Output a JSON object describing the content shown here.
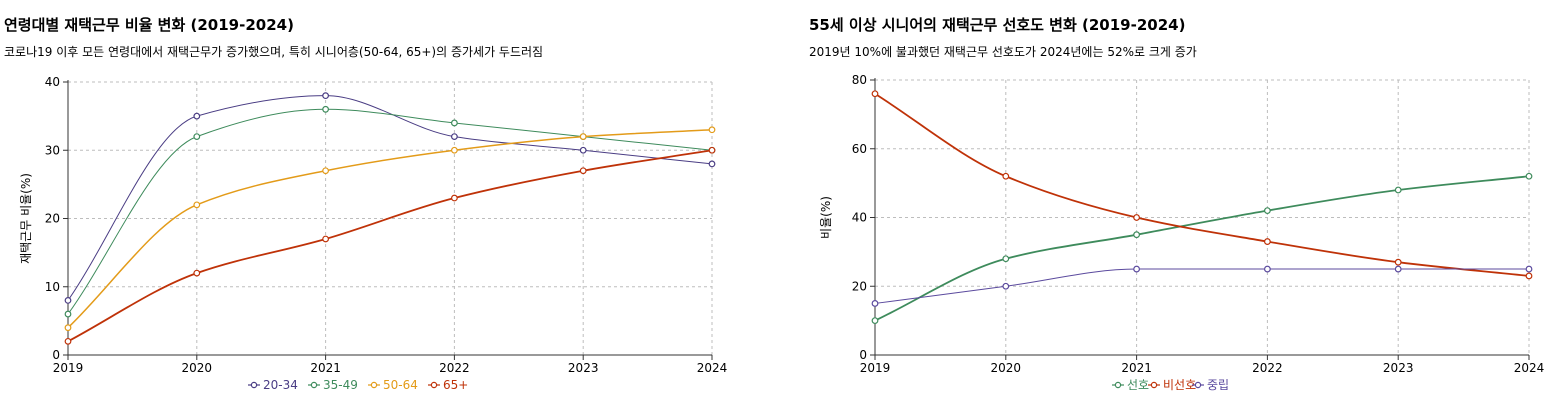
{
  "chart_data": [
    {
      "type": "line",
      "title": "연령대별 재택근무 비율 변화 (2019-2024)",
      "subtitle": "코로나19 이후 모든 연령대에서 재택근무가 증가했으며, 특히 시니어층(50-64, 65+)의 증가세가 두드러짐",
      "xlabel": "",
      "ylabel": "재택근무 비율(%)",
      "x": [
        "2019",
        "2020",
        "2021",
        "2022",
        "2023",
        "2024"
      ],
      "ylim": [
        0,
        40
      ],
      "yticks": [
        0,
        10,
        20,
        30,
        40
      ],
      "grid": true,
      "legend": "bottom",
      "series": [
        {
          "name": "20-34",
          "color": "#4a3d84",
          "width": 1,
          "values": [
            8,
            35,
            38,
            32,
            30,
            28
          ]
        },
        {
          "name": "35-49",
          "color": "#3e8b5c",
          "width": 1,
          "values": [
            6,
            32,
            36,
            34,
            32,
            30
          ]
        },
        {
          "name": "50-64",
          "color": "#e39b19",
          "width": 1.5,
          "values": [
            4,
            22,
            27,
            30,
            32,
            33
          ]
        },
        {
          "name": "65+",
          "color": "#bf3208",
          "width": 1.8,
          "values": [
            2,
            12,
            17,
            23,
            27,
            30
          ]
        }
      ]
    },
    {
      "type": "line",
      "title": "55세 이상 시니어의 재택근무 선호도 변화 (2019-2024)",
      "subtitle": "2019년 10%에 불과했던 재택근무 선호도가 2024년에는 52%로 크게 증가",
      "xlabel": "",
      "ylabel": "비율(%)",
      "x": [
        "2019",
        "2020",
        "2021",
        "2022",
        "2023",
        "2024"
      ],
      "ylim": [
        0,
        80
      ],
      "yticks": [
        0,
        20,
        40,
        60,
        80
      ],
      "grid": true,
      "legend": "bottom",
      "series": [
        {
          "name": "선호",
          "color": "#3e8b5c",
          "width": 1.8,
          "values": [
            10,
            28,
            35,
            42,
            48,
            52
          ]
        },
        {
          "name": "비선호",
          "color": "#bf3208",
          "width": 1.8,
          "values": [
            76,
            52,
            40,
            33,
            27,
            23
          ]
        },
        {
          "name": "중립",
          "color": "#5b4a9e",
          "width": 1,
          "values": [
            15,
            20,
            25,
            25,
            25,
            25
          ]
        }
      ]
    }
  ]
}
